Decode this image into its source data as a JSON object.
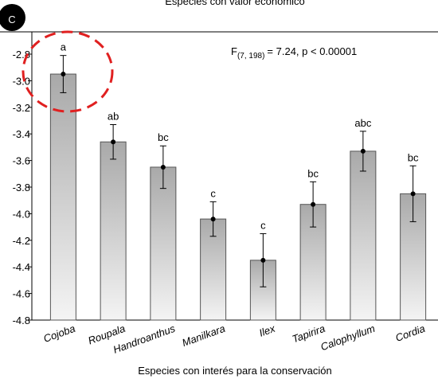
{
  "chart_data": {
    "type": "bar",
    "title": "Especies con valor económico",
    "badge": "C",
    "annotation": {
      "main": "F",
      "sub": "(7, 198)",
      "rest": "= 7.24, p < 0.00001"
    },
    "x_label": "Especies con interés para la conservación",
    "categories": [
      "Cojoba",
      "Roupala",
      "Handroanthus",
      "Manilkara",
      "Ilex",
      "Tapirira",
      "Calophyllum",
      "Cordia"
    ],
    "values": [
      -2.95,
      -3.46,
      -3.65,
      -4.04,
      -4.35,
      -3.93,
      -3.53,
      -3.85
    ],
    "errors": [
      0.14,
      0.13,
      0.16,
      0.13,
      0.2,
      0.17,
      0.15,
      0.21
    ],
    "significance_letters": [
      "a",
      "ab",
      "bc",
      "c",
      "c",
      "bc",
      "abc",
      "bc"
    ],
    "color": "#a9a9a9",
    "ylim": [
      -4.8,
      -2.63
    ],
    "yticks": [
      -2.8,
      {
        "value": -3,
        "label": "-3.0"
      },
      -3.2,
      -3.4,
      -3.6,
      -3.8,
      {
        "value": -4,
        "label": "-4.0"
      },
      -4.2,
      -4.4,
      -4.6,
      -4.8
    ]
  }
}
